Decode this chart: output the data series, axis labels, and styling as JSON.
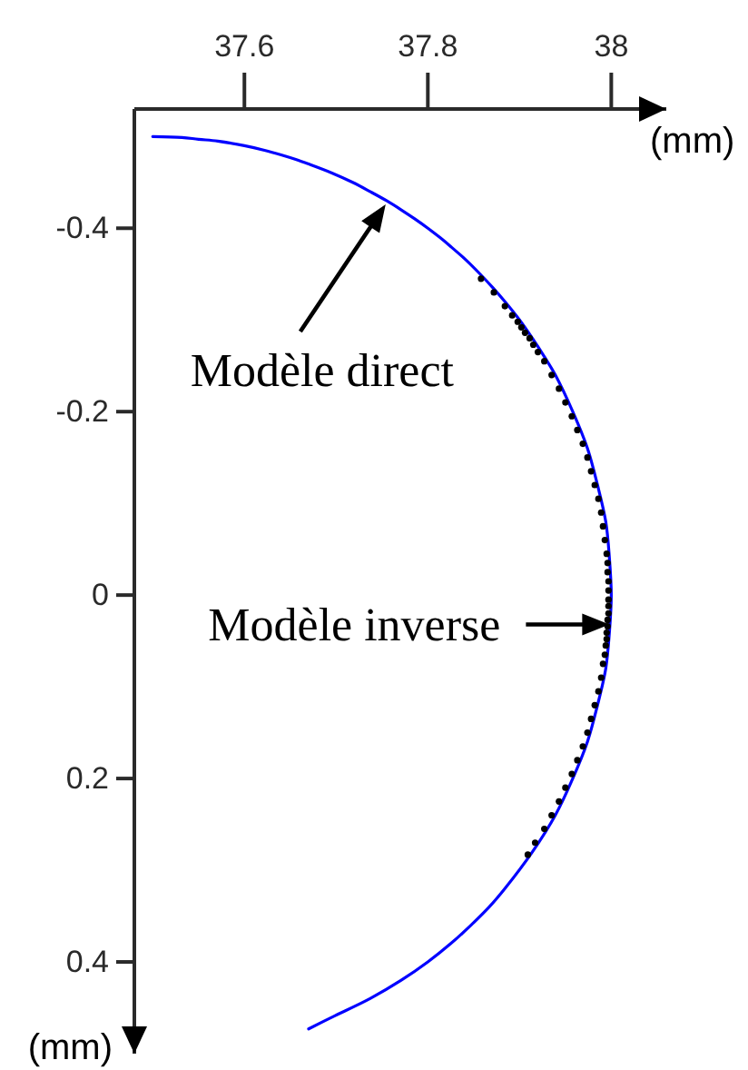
{
  "chart_data": {
    "type": "line",
    "xlabel": "(mm)",
    "ylabel": "(mm)",
    "xlim": [
      37.48,
      38.06
    ],
    "ylim": [
      0.5,
      -0.53
    ],
    "xticks": [
      37.6,
      37.8,
      38
    ],
    "yticks": [
      -0.4,
      -0.2,
      0,
      0.2,
      0.4
    ],
    "series": [
      {
        "type": "line",
        "color": "#0000ff",
        "x": [
          37.5,
          37.532,
          37.55,
          37.571,
          37.6,
          37.622,
          37.64,
          37.656,
          37.67,
          37.696,
          37.718,
          37.737,
          37.755,
          37.771,
          37.786,
          37.8,
          37.813,
          37.825,
          37.842,
          37.857,
          37.871,
          37.884,
          37.9,
          37.914,
          37.927,
          37.939,
          37.958,
          37.974,
          37.985,
          37.994,
          37.998,
          38.0,
          37.998,
          37.994,
          37.985,
          37.974,
          37.958,
          37.939,
          37.914,
          37.884,
          37.867,
          37.847,
          37.825,
          37.8,
          37.771,
          37.737,
          37.696,
          37.67
        ],
        "values": [
          -0.5,
          -0.499,
          -0.497,
          -0.495,
          -0.49,
          -0.485,
          -0.48,
          -0.475,
          -0.47,
          -0.46,
          -0.45,
          -0.44,
          -0.43,
          -0.42,
          -0.41,
          -0.4,
          -0.39,
          -0.38,
          -0.365,
          -0.35,
          -0.335,
          -0.32,
          -0.3,
          -0.28,
          -0.26,
          -0.24,
          -0.2,
          -0.16,
          -0.12,
          -0.08,
          -0.04,
          0,
          0.04,
          0.08,
          0.12,
          0.16,
          0.2,
          0.24,
          0.28,
          0.32,
          0.34,
          0.36,
          0.38,
          0.4,
          0.42,
          0.44,
          0.46,
          0.473
        ]
      },
      {
        "type": "scatter",
        "color": "#000000",
        "marker": "circle",
        "x": [
          37.858,
          37.872,
          37.884,
          37.892,
          37.898,
          37.902,
          37.906,
          37.911,
          37.915,
          37.92,
          37.927,
          37.935,
          37.943,
          37.95,
          37.957,
          37.963,
          37.969,
          37.974,
          37.978,
          37.982,
          37.986,
          37.989,
          37.991,
          37.993,
          37.995,
          37.996,
          37.996,
          37.997,
          37.997,
          37.997,
          37.997,
          37.997,
          37.996,
          37.996,
          37.995,
          37.995,
          37.994,
          37.993,
          37.991,
          37.989,
          37.986,
          37.982,
          37.978,
          37.974,
          37.969,
          37.963,
          37.957,
          37.95,
          37.943,
          37.935,
          37.927,
          37.917,
          37.909
        ],
        "values": [
          -0.345,
          -0.33,
          -0.315,
          -0.305,
          -0.298,
          -0.292,
          -0.286,
          -0.28,
          -0.273,
          -0.265,
          -0.255,
          -0.24,
          -0.225,
          -0.21,
          -0.195,
          -0.18,
          -0.165,
          -0.15,
          -0.135,
          -0.12,
          -0.105,
          -0.09,
          -0.075,
          -0.06,
          -0.045,
          -0.035,
          -0.025,
          -0.015,
          -0.005,
          0.005,
          0.012,
          0.02,
          0.027,
          0.034,
          0.041,
          0.048,
          0.055,
          0.065,
          0.075,
          0.09,
          0.105,
          0.12,
          0.135,
          0.15,
          0.165,
          0.18,
          0.195,
          0.21,
          0.225,
          0.24,
          0.255,
          0.27,
          0.283
        ]
      }
    ],
    "annotations": [
      {
        "text": "Modèle direct",
        "x": 37.754,
        "y": -0.426
      },
      {
        "text": "Modèle inverse",
        "x": 37.998,
        "y": 0.032
      }
    ]
  }
}
